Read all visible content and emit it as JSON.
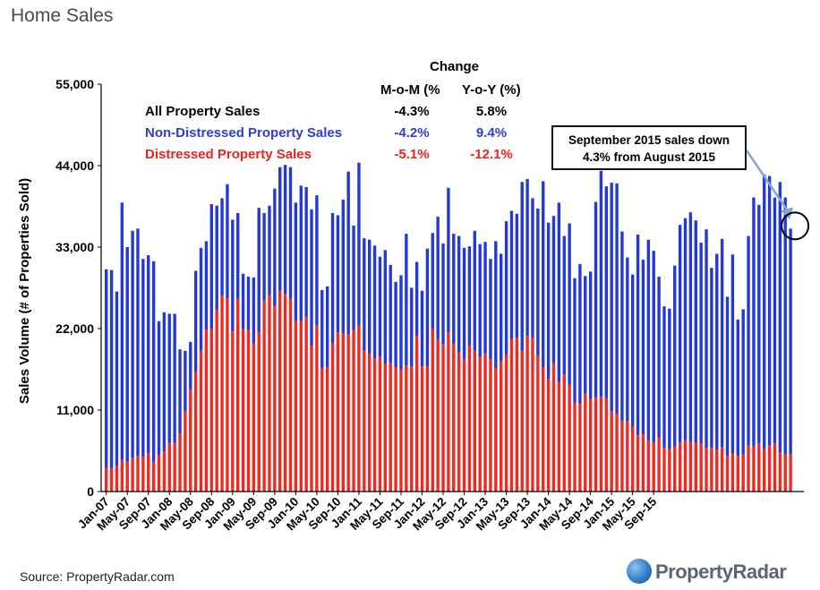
{
  "header": {
    "title": "Home Sales"
  },
  "table": {
    "change_label": "Change",
    "col_mom": "M-o-M (%",
    "col_yoy": "Y-o-Y (%)",
    "rows": [
      {
        "label": "All Property Sales",
        "mom": "-4.3%",
        "yoy": "5.8%",
        "color": "#000000"
      },
      {
        "label": "Non-Distressed Property Sales",
        "mom": "-4.2%",
        "yoy": "9.4%",
        "color": "#2b3fd6"
      },
      {
        "label": "Distressed Property Sales",
        "mom": "-5.1%",
        "yoy": "-12.1%",
        "color": "#e8231b"
      }
    ]
  },
  "callout": {
    "line1": "September 2015 sales down",
    "line2": "4.3% from August 2015"
  },
  "footer": {
    "source": "Source: PropertyRadar.com",
    "logo": "PropertyRadar"
  },
  "colors": {
    "non_distressed": "#2439d8",
    "distressed": "#ee2a22",
    "arrow": "#7fa8cf"
  },
  "chart_data": {
    "type": "bar",
    "stacked": true,
    "ylabel": "Sales Volume (# of Properties Sold)",
    "xlabel": "",
    "ylim": [
      0,
      55000
    ],
    "yticks": [
      "0",
      "11,000",
      "22,000",
      "33,000",
      "44,000",
      "55,000"
    ],
    "x_tick_labels": [
      "Jan-07",
      "May-07",
      "Sep-07",
      "Jan-08",
      "May-08",
      "Sep-08",
      "Jan-09",
      "May-09",
      "Sep-09",
      "Jan-10",
      "May-10",
      "Sep-10",
      "Jan-11",
      "May-11",
      "Sep-11",
      "Jan-12",
      "May-12",
      "Sep-12",
      "Jan-13",
      "May-13",
      "Sep-13",
      "Jan-14",
      "May-14",
      "Sep-14",
      "Jan-15",
      "May-15",
      "Sep-15"
    ],
    "start_month": "Jan-07",
    "series": [
      {
        "name": "Distressed Property Sales",
        "values": [
          3200,
          3100,
          3400,
          4300,
          4000,
          4500,
          4800,
          4700,
          5200,
          4000,
          4900,
          5500,
          6500,
          6500,
          7800,
          10800,
          13800,
          16200,
          19000,
          21800,
          22000,
          24600,
          26400,
          26100,
          21600,
          26000,
          22000,
          21800,
          20000,
          21500,
          25800,
          26500,
          25000,
          27100,
          26700,
          26000,
          23000,
          23000,
          23600,
          19700,
          22400,
          16600,
          16800,
          20000,
          21500,
          21400,
          21200,
          21800,
          22400,
          19000,
          18600,
          18000,
          18200,
          17200,
          17400,
          16800,
          16400,
          17000,
          16900,
          21000,
          16900,
          16900,
          22000,
          20500,
          19900,
          21500,
          20000,
          18800,
          17900,
          19700,
          19000,
          18100,
          18600,
          17800,
          16600,
          17600,
          18500,
          20600,
          20700,
          19000,
          21000,
          20700,
          18300,
          16800,
          15200,
          17300,
          14800,
          15800,
          14400,
          12000,
          11900,
          13200,
          12500,
          12700,
          12800,
          12600,
          10800,
          10500,
          9600,
          9500,
          8800,
          7600,
          7700,
          6900,
          6600,
          7300,
          5900,
          5800,
          6100,
          6600,
          6900,
          6700,
          6600,
          6500,
          5900,
          5900,
          5600,
          6000,
          4800,
          5200,
          4800,
          5000,
          6200,
          6100,
          6500,
          5700,
          6200,
          6500,
          5300,
          5000,
          5000
        ]
      },
      {
        "name": "Non-Distressed Property Sales",
        "values": [
          26800,
          26800,
          23600,
          34700,
          29000,
          30700,
          30700,
          26700,
          26700,
          27100,
          18100,
          18700,
          17500,
          17500,
          11400,
          8200,
          6400,
          13600,
          13900,
          12000,
          16800,
          14000,
          13200,
          15400,
          15100,
          11600,
          7400,
          7200,
          8900,
          16800,
          11800,
          12100,
          15900,
          16700,
          17400,
          17800,
          16000,
          18300,
          17500,
          18400,
          17600,
          10600,
          10900,
          17600,
          15800,
          18000,
          22000,
          14100,
          22000,
          15200,
          15400,
          15200,
          13500,
          15400,
          13200,
          11500,
          12800,
          17800,
          10600,
          10000,
          10200,
          15900,
          12900,
          16600,
          13600,
          19500,
          14800,
          15700,
          15000,
          13400,
          16200,
          15300,
          15100,
          13600,
          17200,
          14500,
          18000,
          17300,
          16800,
          22800,
          21200,
          18900,
          19900,
          25100,
          21100,
          19900,
          24200,
          18700,
          21800,
          16800,
          18800,
          15900,
          17200,
          26400,
          30500,
          28600,
          30900,
          31100,
          25500,
          22100,
          20500,
          27100,
          23600,
          27100,
          25900,
          21700,
          19100,
          18900,
          24400,
          29400,
          30000,
          31000,
          30000,
          27100,
          29500,
          24300,
          26500,
          28100,
          21500,
          26800,
          18400,
          19600,
          28300,
          33600,
          32200,
          37100,
          36400,
          33200,
          36500,
          34700,
          30500
        ]
      }
    ]
  }
}
